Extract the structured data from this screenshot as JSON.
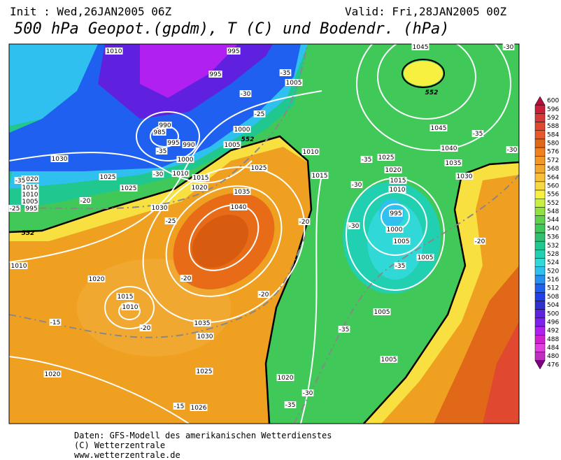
{
  "header": {
    "init": "Init : Wed,26JAN2005 06Z",
    "valid": "Valid: Fri,28JAN2005 00Z",
    "title": "500 hPa Geopot.(gpdm), T (C) und Bodendr. (hPa)"
  },
  "map": {
    "pressure_labels": [
      1010,
      995,
      1045,
      995,
      1005,
      1000,
      990,
      985,
      995,
      990,
      1005,
      1000,
      1010,
      1015,
      1020,
      1025,
      1010,
      1015,
      1025,
      1020,
      1015,
      1010,
      995,
      1000,
      1005,
      1005,
      1045,
      1040,
      1035,
      1030,
      1030,
      1025,
      1025,
      1020,
      1015,
      1010,
      1005,
      995,
      1030,
      1035,
      1040,
      1010,
      1020,
      1015,
      1010,
      1035,
      1030,
      1025,
      1020,
      1026,
      1020,
      1005,
      1005
    ],
    "temperature_labels": [
      -35,
      -30,
      -25,
      -35,
      -30,
      -30,
      -35,
      -35,
      -30,
      -35,
      -20,
      -20,
      -20,
      -20,
      -15,
      -15,
      -25,
      -20,
      -25,
      -35,
      -30,
      -35,
      -30,
      -30,
      -20,
      -35
    ],
    "thickness_labels": [
      552,
      552,
      552
    ]
  },
  "colorbar": {
    "values": [
      600,
      596,
      592,
      588,
      584,
      580,
      576,
      572,
      568,
      564,
      560,
      556,
      552,
      548,
      544,
      540,
      536,
      532,
      528,
      524,
      520,
      516,
      512,
      508,
      504,
      500,
      496,
      492,
      488,
      484,
      480,
      476
    ],
    "colors": [
      "#b0103a",
      "#c8203a",
      "#d83838",
      "#e04830",
      "#e85828",
      "#e06818",
      "#f08020",
      "#f09828",
      "#f0a830",
      "#f8c038",
      "#f8d840",
      "#f8f040",
      "#c8f040",
      "#90e040",
      "#60d050",
      "#40c858",
      "#30c070",
      "#20c890",
      "#20d0b0",
      "#30d8d8",
      "#30c0f0",
      "#2890f0",
      "#2060f0",
      "#2040e8",
      "#3030d0",
      "#6020e0",
      "#8020f0",
      "#b020f0",
      "#d020d0",
      "#e040e0",
      "#c030c0",
      "#800080"
    ]
  },
  "footer": {
    "line1": "Daten: GFS-Modell des amerikanischen Wetterdienstes",
    "line2": "(C) Wetterzentrale",
    "line3": "www.wetterzentrale.de"
  }
}
